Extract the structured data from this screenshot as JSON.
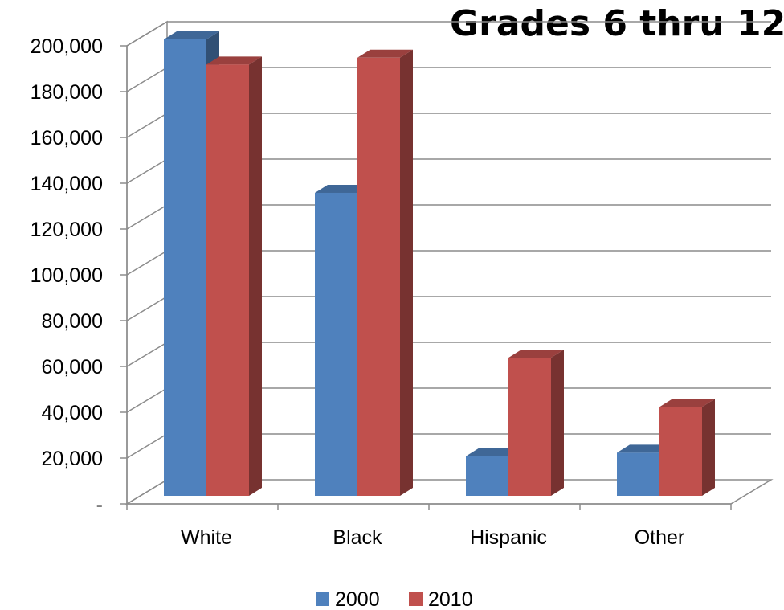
{
  "chart_data": {
    "type": "bar",
    "title": "Grades 6 thru 12",
    "categories": [
      "White",
      "Black",
      "Hispanic",
      "Other"
    ],
    "series": [
      {
        "name": "2000",
        "values": [
          200000,
          133000,
          18000,
          19500
        ],
        "color": "#4F81BD"
      },
      {
        "name": "2010",
        "values": [
          189000,
          192000,
          61000,
          39500
        ],
        "color": "#C0504D"
      }
    ],
    "yticks": [
      "-",
      "20,000",
      "40,000",
      "60,000",
      "80,000",
      "100,000",
      "120,000",
      "140,000",
      "160,000",
      "180,000",
      "200,000"
    ],
    "ylim": [
      0,
      200000
    ],
    "grid": true,
    "legend_position": "bottom"
  }
}
